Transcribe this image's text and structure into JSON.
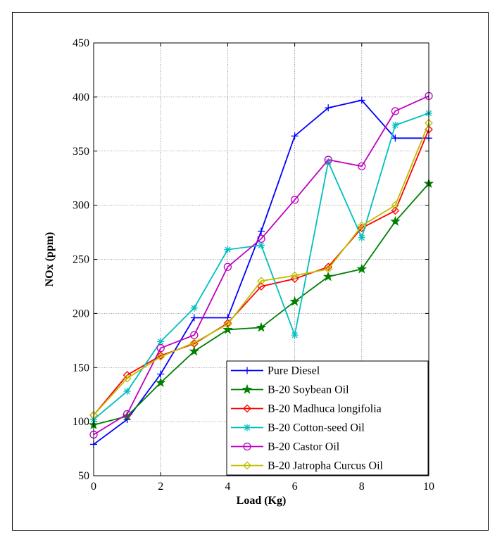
{
  "chart_data": {
    "type": "line",
    "xlabel": "Load (Kg)",
    "ylabel": "NOx (ppm)",
    "xlim": [
      0,
      10
    ],
    "ylim": [
      50,
      450
    ],
    "xticks": [
      0,
      2,
      4,
      6,
      8,
      10
    ],
    "yticks": [
      50,
      100,
      150,
      200,
      250,
      300,
      350,
      400,
      450
    ],
    "grid": true,
    "legend_position": "bottom-right",
    "x": [
      0,
      1,
      2,
      3,
      4,
      5,
      6,
      7,
      8,
      9,
      10
    ],
    "series": [
      {
        "name": "Pure Diesel",
        "color": "#0000ff",
        "marker": "plus",
        "values": [
          79,
          102,
          144,
          196,
          196,
          276,
          364,
          390,
          397,
          362,
          362
        ]
      },
      {
        "name": "B-20 Soybean Oil",
        "color": "#007f00",
        "marker": "star",
        "values": [
          97,
          105,
          136,
          165,
          185,
          187,
          211,
          234,
          241,
          285,
          320
        ]
      },
      {
        "name": "B-20 Madhuca longifolia",
        "color": "#ff0000",
        "marker": "diamond",
        "values": [
          106,
          143,
          161,
          172,
          191,
          225,
          232,
          243,
          279,
          295,
          370
        ]
      },
      {
        "name": "B-20 Cotton-seed Oil",
        "color": "#00bfbf",
        "marker": "asterisk",
        "values": [
          102,
          128,
          174,
          205,
          259,
          263,
          180,
          340,
          270,
          374,
          385
        ]
      },
      {
        "name": "B-20 Castor Oil",
        "color": "#bf00bf",
        "marker": "circle",
        "values": [
          88,
          107,
          168,
          180,
          243,
          269,
          305,
          342,
          336,
          387,
          401
        ]
      },
      {
        "name": "B-20 Jatropha Curcus Oil",
        "color": "#bfbf00",
        "marker": "diamond",
        "values": [
          106,
          140,
          160,
          173,
          190,
          230,
          235,
          241,
          281,
          300,
          376
        ]
      }
    ]
  }
}
